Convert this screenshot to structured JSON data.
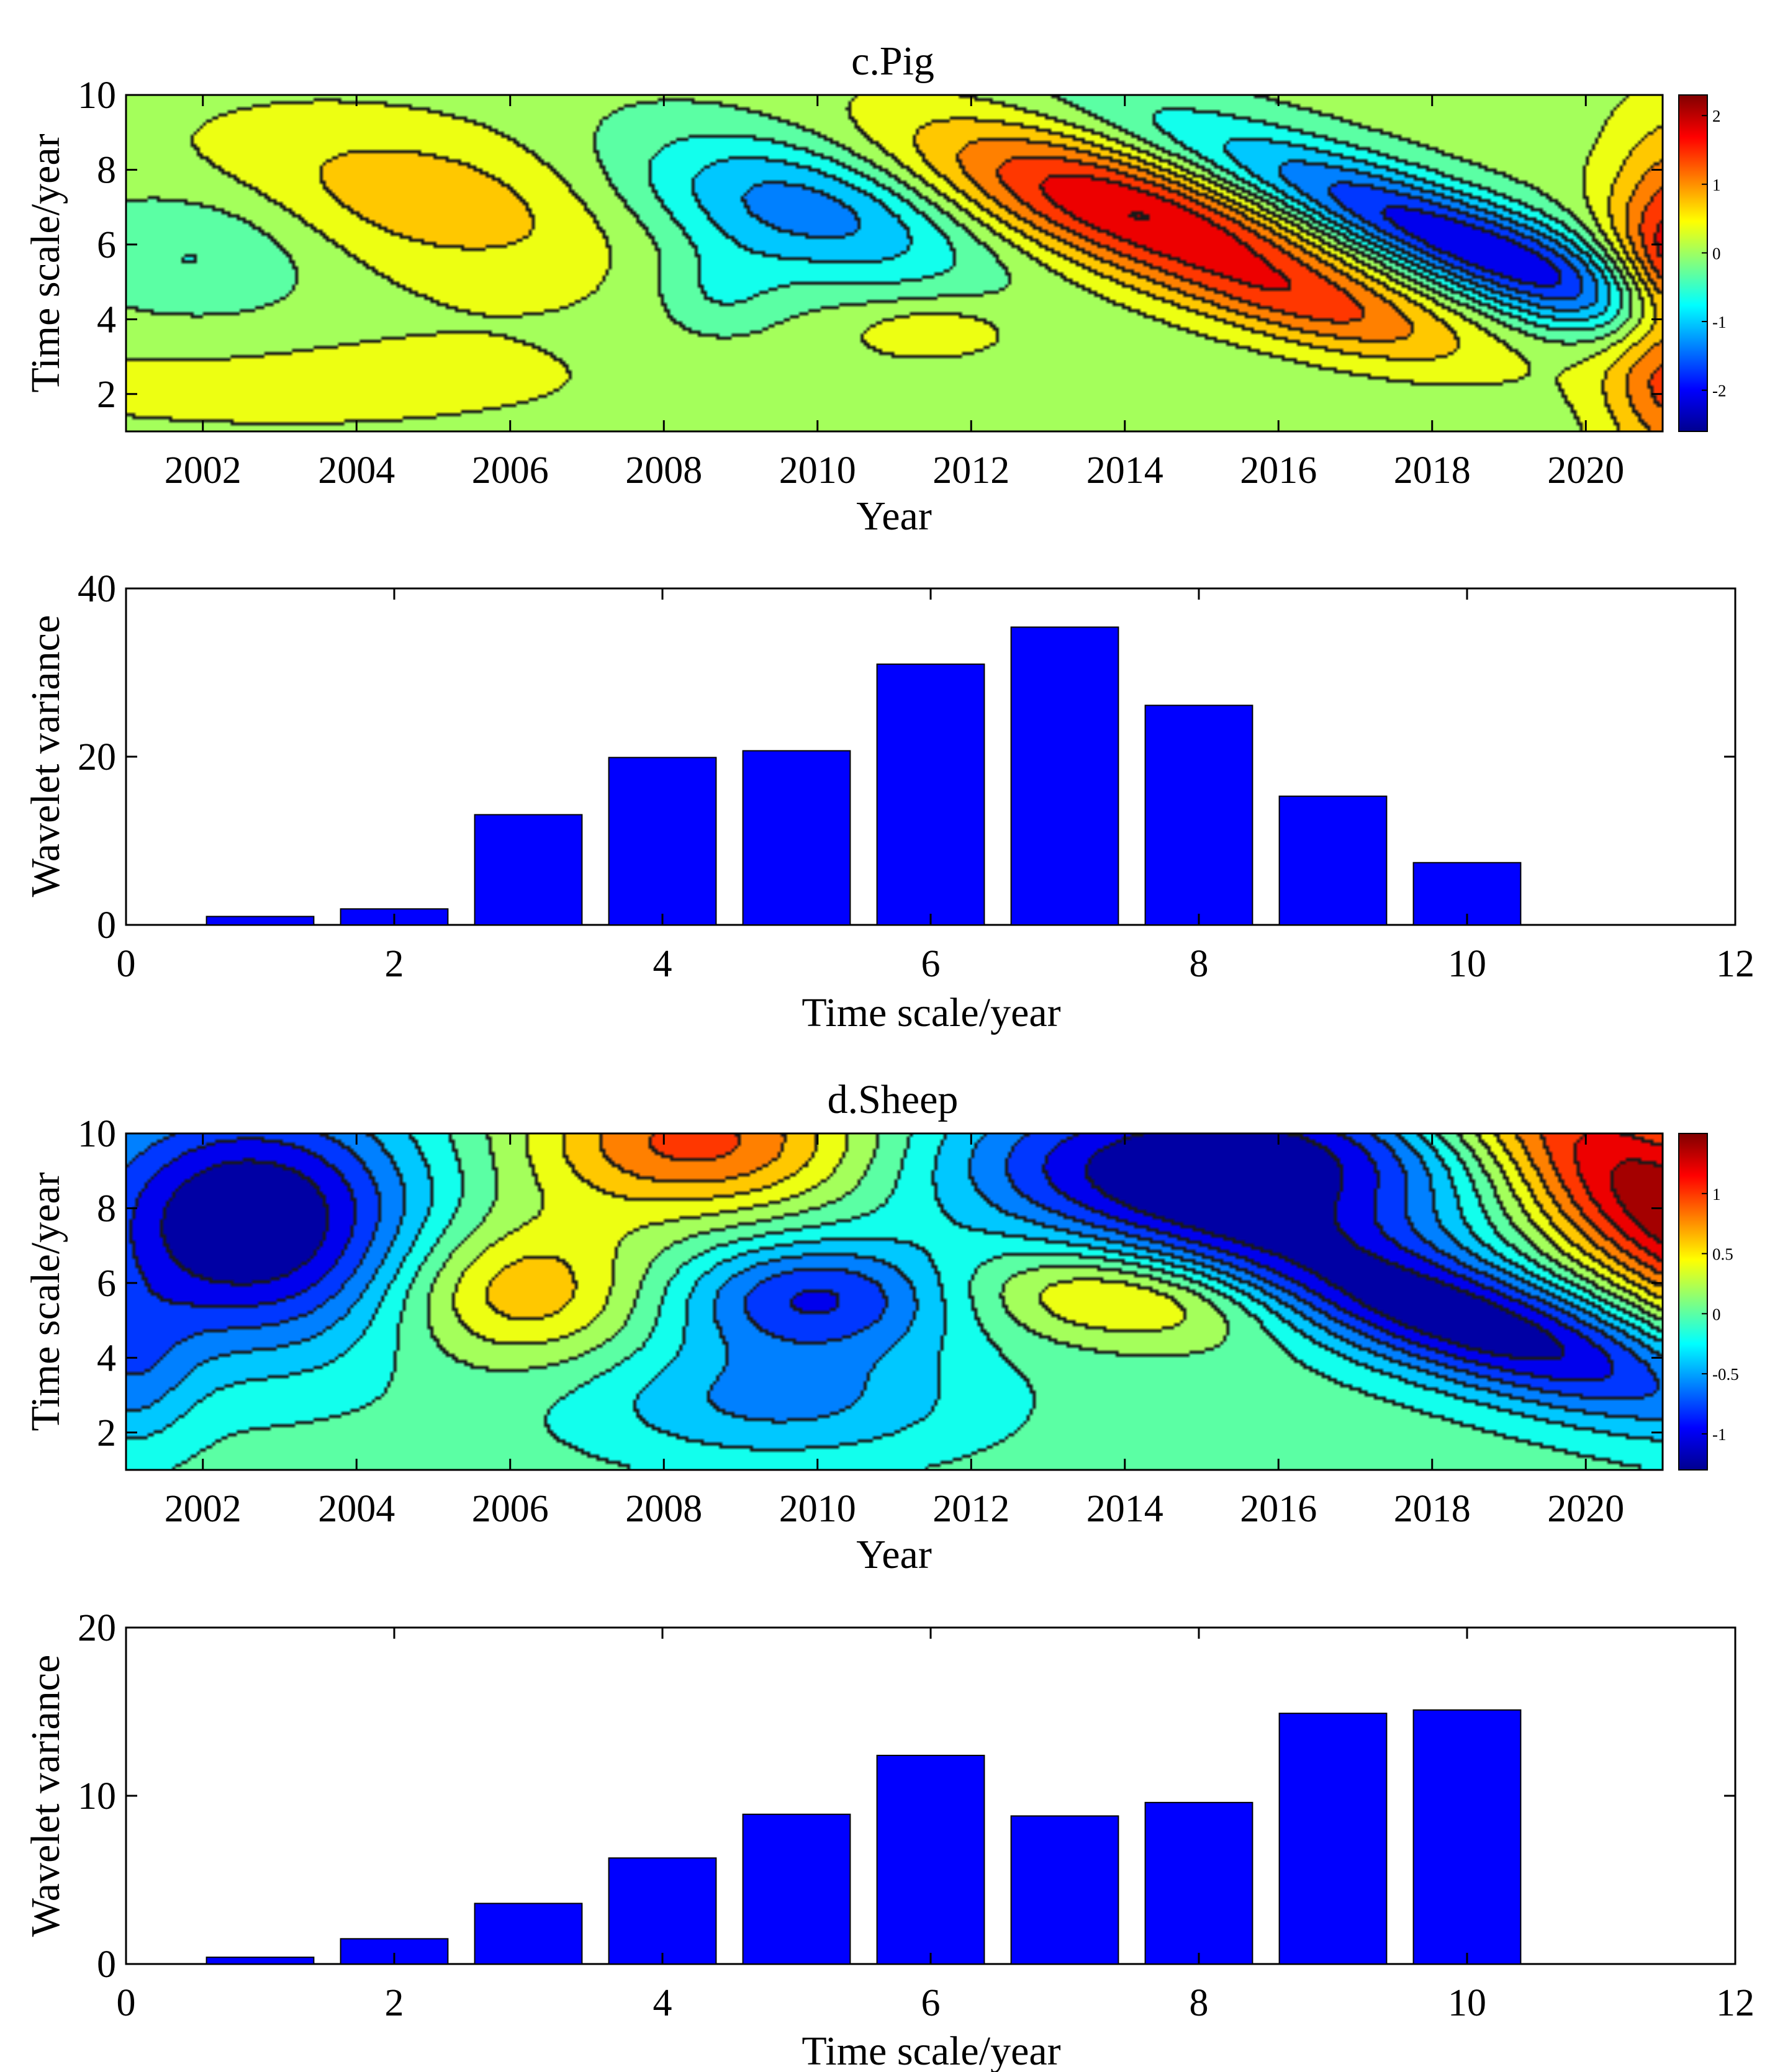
{
  "figure": {
    "panels": [
      {
        "title": "c.Pig",
        "xlabel": "Year",
        "ylabel": "Time scale/year"
      },
      {
        "title": "",
        "xlabel": "Time scale/year",
        "ylabel": "Wavelet variance"
      },
      {
        "title": "d.Sheep",
        "xlabel": "Year",
        "ylabel": "Time scale/year"
      },
      {
        "title": "",
        "xlabel": "Time scale/year",
        "ylabel": "Wavelet variance"
      }
    ]
  },
  "chart_data": [
    {
      "type": "heatmap",
      "title": "c.Pig",
      "xlabel": "Year",
      "ylabel": "Time scale/year",
      "xlim": [
        2001,
        2021
      ],
      "ylim": [
        1,
        10
      ],
      "xticks": [
        "2002",
        "2004",
        "2006",
        "2008",
        "2010",
        "2012",
        "2014",
        "2016",
        "2018",
        "2020"
      ],
      "yticks": [
        "2",
        "4",
        "6",
        "8",
        "10"
      ],
      "colorbar": {
        "range": [
          -2.6,
          2.3
        ],
        "ticks": [
          "2",
          "1",
          "0",
          "-1",
          "-2"
        ],
        "tick_values": [
          2,
          1,
          0,
          -1,
          -2
        ]
      },
      "features": [
        {
          "x": 2004.9,
          "y": 7.2,
          "sx": 2.0,
          "sy": 1.6,
          "a": 0.8,
          "slope": -0.5
        },
        {
          "x": 2009.9,
          "y": 7.0,
          "sx": 1.6,
          "sy": 1.5,
          "a": -1.5,
          "slope": -0.4
        },
        {
          "x": 2014.0,
          "y": 7.0,
          "sx": 1.7,
          "sy": 1.6,
          "a": 2.0,
          "slope": -0.9
        },
        {
          "x": 2016.6,
          "y": 4.2,
          "sx": 1.1,
          "sy": 1.1,
          "a": 1.0,
          "slope": -0.9
        },
        {
          "x": 2018.4,
          "y": 6.0,
          "sx": 1.2,
          "sy": 2.2,
          "a": -2.4,
          "slope": -1.1
        },
        {
          "x": 2021.3,
          "y": 4.5,
          "sx": 0.7,
          "sy": 2.8,
          "a": 2.4,
          "slope": 0
        },
        {
          "x": 2011.5,
          "y": 3.7,
          "sx": 0.8,
          "sy": 0.6,
          "a": 0.5,
          "slope": 0
        },
        {
          "x": 2002.0,
          "y": 5.8,
          "sx": 1.2,
          "sy": 1.4,
          "a": -0.6,
          "slope": 0
        },
        {
          "x": 2008.7,
          "y": 4.6,
          "sx": 0.6,
          "sy": 0.9,
          "a": -0.5,
          "slope": 0
        },
        {
          "x": 2003.0,
          "y": 2.3,
          "sx": 4.0,
          "sy": 1.3,
          "a": 0.3,
          "slope": 0
        }
      ]
    },
    {
      "type": "bar",
      "title": "",
      "xlabel": "Time scale/year",
      "ylabel": "Wavelet variance",
      "x": [
        1,
        2,
        3,
        4,
        5,
        6,
        7,
        8,
        9,
        10
      ],
      "values": [
        1.0,
        1.9,
        13.1,
        19.9,
        20.7,
        31.0,
        35.4,
        26.1,
        15.3,
        7.4
      ],
      "xlim": [
        0,
        12
      ],
      "ylim": [
        0,
        40
      ],
      "xticks": [
        "0",
        "2",
        "4",
        "6",
        "8",
        "10",
        "12"
      ],
      "yticks": [
        "0",
        "20",
        "40"
      ],
      "bar_color": "#0000ff"
    },
    {
      "type": "heatmap",
      "title": "d.Sheep",
      "xlabel": "Year",
      "ylabel": "Time scale/year",
      "xlim": [
        2001,
        2021
      ],
      "ylim": [
        1,
        10
      ],
      "xticks": [
        "2002",
        "2004",
        "2006",
        "2008",
        "2010",
        "2012",
        "2014",
        "2016",
        "2018",
        "2020"
      ],
      "yticks": [
        "2",
        "4",
        "6",
        "8",
        "10"
      ],
      "colorbar": {
        "range": [
          -1.3,
          1.5
        ],
        "ticks": [
          "1",
          "0.5",
          "0",
          "-0.5",
          "-1"
        ],
        "tick_values": [
          1,
          0.5,
          0,
          -0.5,
          -1
        ]
      },
      "features": [
        {
          "x": 2002.6,
          "y": 7.6,
          "sx": 1.6,
          "sy": 2.4,
          "a": -1.4,
          "slope": 0
        },
        {
          "x": 2008.5,
          "y": 9.8,
          "sx": 1.6,
          "sy": 1.4,
          "a": 1.0,
          "slope": 0
        },
        {
          "x": 2006.1,
          "y": 5.8,
          "sx": 1.2,
          "sy": 1.4,
          "a": 0.7,
          "slope": 0
        },
        {
          "x": 2010.0,
          "y": 5.6,
          "sx": 1.3,
          "sy": 1.1,
          "a": -0.9,
          "slope": 0
        },
        {
          "x": 2014.0,
          "y": 5.6,
          "sx": 1.4,
          "sy": 0.9,
          "a": 0.6,
          "slope": -0.3
        },
        {
          "x": 2015.5,
          "y": 9.3,
          "sx": 2.6,
          "sy": 1.6,
          "a": -1.3,
          "slope": 0
        },
        {
          "x": 2018.4,
          "y": 5.0,
          "sx": 1.6,
          "sy": 2.0,
          "a": -1.3,
          "slope": -1.0
        },
        {
          "x": 2021.2,
          "y": 8.0,
          "sx": 1.5,
          "sy": 3.5,
          "a": 1.6,
          "slope": -0.6
        },
        {
          "x": 2009.5,
          "y": 2.8,
          "sx": 1.8,
          "sy": 1.2,
          "a": -0.55,
          "slope": 0
        },
        {
          "x": 2001.0,
          "y": 3.5,
          "sx": 0.6,
          "sy": 1.5,
          "a": -0.5,
          "slope": 0
        }
      ]
    },
    {
      "type": "bar",
      "title": "",
      "xlabel": "Time scale/year",
      "ylabel": "Wavelet variance",
      "x": [
        1,
        2,
        3,
        4,
        5,
        6,
        7,
        8,
        9,
        10
      ],
      "values": [
        0.4,
        1.5,
        3.6,
        6.3,
        8.9,
        12.4,
        8.8,
        9.6,
        14.9,
        15.1
      ],
      "xlim": [
        0,
        12
      ],
      "ylim": [
        0,
        20
      ],
      "xticks": [
        "0",
        "2",
        "4",
        "6",
        "8",
        "10",
        "12"
      ],
      "yticks": [
        "0",
        "10",
        "20"
      ],
      "bar_color": "#0000ff"
    }
  ]
}
